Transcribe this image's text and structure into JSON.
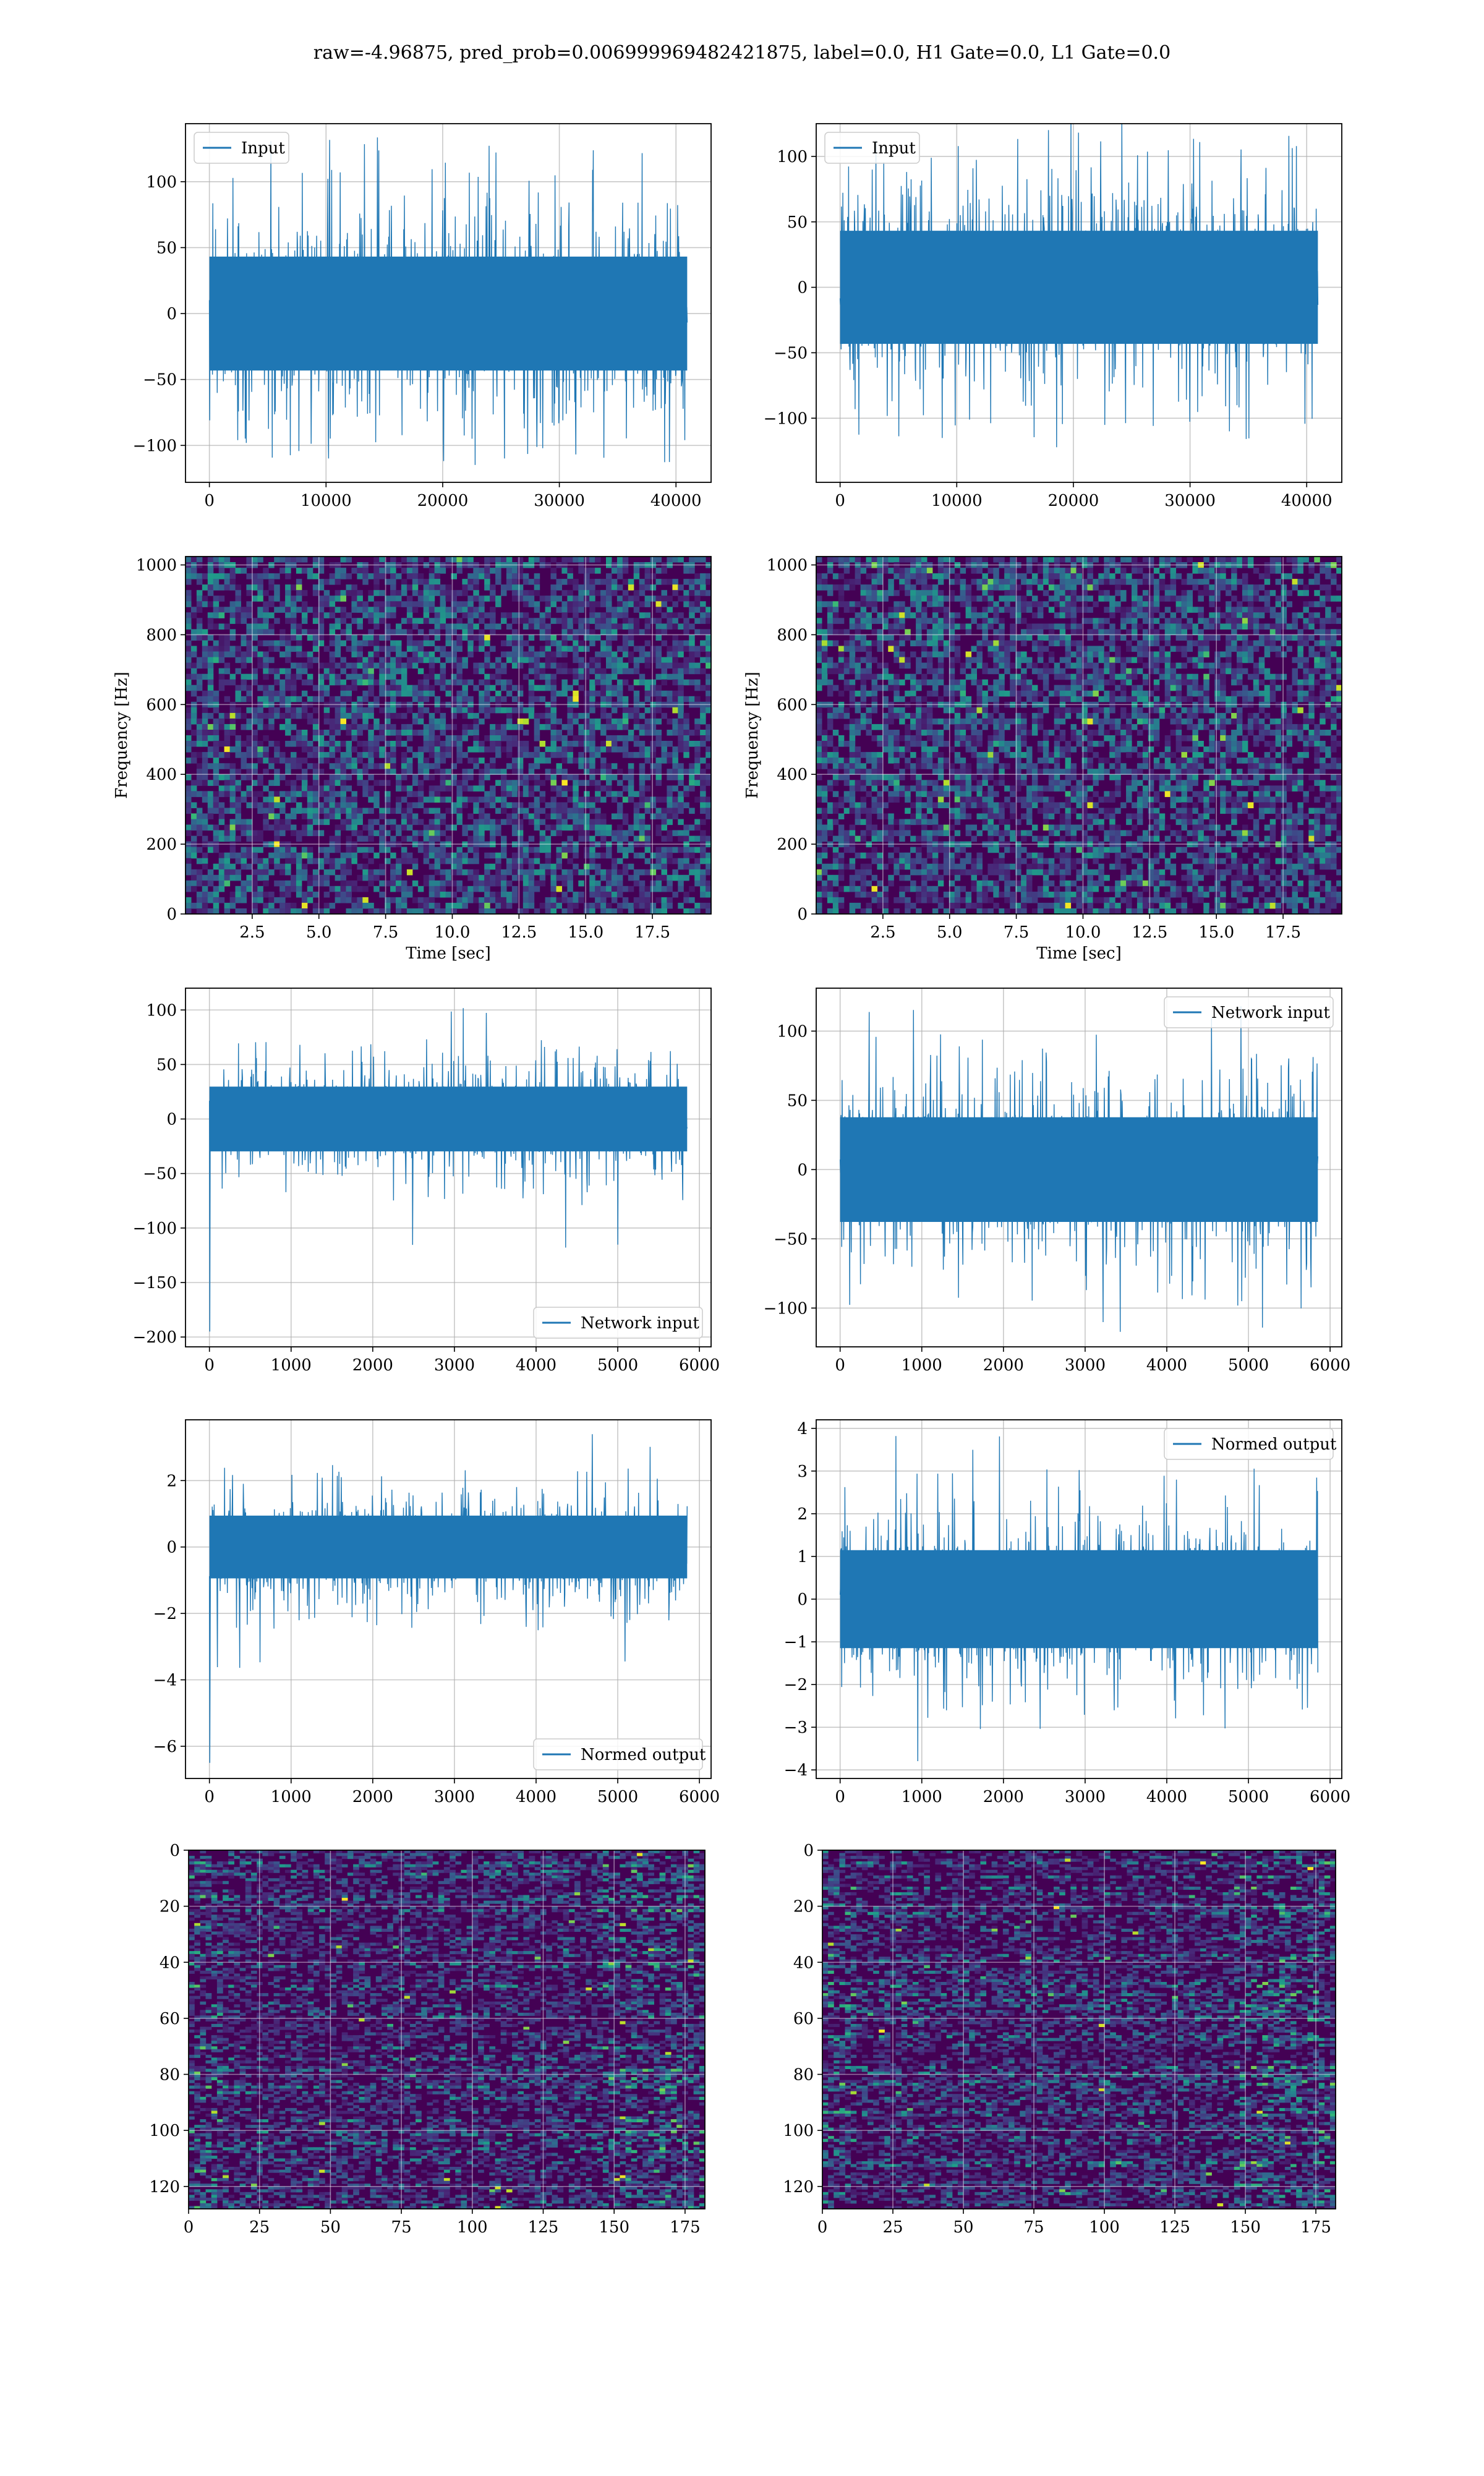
{
  "figure": {
    "suptitle": "raw=-4.96875, pred_prob=0.006999969482421875, label=0.0, H1 Gate=0.0, L1 Gate=0.0"
  },
  "colors": {
    "line": "#1f77b4",
    "grid": "#b0b0b0",
    "axes": "#000000",
    "viridis_low": "#440154",
    "viridis_mid": "#21918c",
    "viridis_high": "#fde725"
  },
  "chart_data": [
    {
      "id": "ts-input-left",
      "type": "line",
      "x_range": [
        0,
        40960
      ],
      "n_points": 1400,
      "y_amplitude": 32,
      "y_peak_max": 136,
      "y_peak_min": -112,
      "start_spike": 0,
      "xlim": [
        -2048,
        43008
      ],
      "ylim": [
        -128,
        144
      ],
      "xticks": [
        0,
        10000,
        20000,
        30000,
        40000
      ],
      "xtick_labels": [
        "0",
        "10000",
        "20000",
        "30000",
        "40000"
      ],
      "yticks": [
        -100,
        -50,
        0,
        50,
        100
      ],
      "ytick_labels": [
        "−100",
        "−50",
        "0",
        "50",
        "100"
      ],
      "legend": "Input",
      "legend_loc": "upper-left",
      "xlabel": "",
      "ylabel": "",
      "grid": true
    },
    {
      "id": "ts-input-right",
      "type": "line",
      "x_range": [
        0,
        40960
      ],
      "n_points": 1400,
      "y_amplitude": 32,
      "y_peak_max": 128,
      "y_peak_min": -128,
      "start_spike": 0,
      "xlim": [
        -2048,
        43008
      ],
      "ylim": [
        -149,
        125
      ],
      "xticks": [
        0,
        10000,
        20000,
        30000,
        40000
      ],
      "xtick_labels": [
        "0",
        "10000",
        "20000",
        "30000",
        "40000"
      ],
      "yticks": [
        -100,
        -50,
        0,
        50,
        100
      ],
      "ytick_labels": [
        "−100",
        "−50",
        "0",
        "50",
        "100"
      ],
      "legend": "Input",
      "legend_loc": "upper-left",
      "xlabel": "",
      "ylabel": "",
      "grid": true
    },
    {
      "id": "spec-left",
      "type": "heatmap",
      "variant": "spectrogram",
      "xlim": [
        0,
        19.7
      ],
      "ylim": [
        0,
        1024
      ],
      "xticks": [
        2.5,
        5.0,
        7.5,
        10.0,
        12.5,
        15.0,
        17.5
      ],
      "xtick_labels": [
        "2.5",
        "5.0",
        "7.5",
        "10.0",
        "12.5",
        "15.0",
        "17.5"
      ],
      "yticks": [
        0,
        200,
        400,
        600,
        800,
        1000
      ],
      "ytick_labels": [
        "0",
        "200",
        "400",
        "600",
        "800",
        "1000"
      ],
      "xlabel": "Time [sec]",
      "ylabel": "Frequency [Hz]",
      "grid": true,
      "colormap": "viridis"
    },
    {
      "id": "spec-right",
      "type": "heatmap",
      "variant": "spectrogram",
      "xlim": [
        0,
        19.7
      ],
      "ylim": [
        0,
        1024
      ],
      "xticks": [
        2.5,
        5.0,
        7.5,
        10.0,
        12.5,
        15.0,
        17.5
      ],
      "xtick_labels": [
        "2.5",
        "5.0",
        "7.5",
        "10.0",
        "12.5",
        "15.0",
        "17.5"
      ],
      "yticks": [
        0,
        200,
        400,
        600,
        800,
        1000
      ],
      "ytick_labels": [
        "0",
        "200",
        "400",
        "600",
        "800",
        "1000"
      ],
      "xlabel": "Time [sec]",
      "ylabel": "Frequency [Hz]",
      "grid": true,
      "colormap": "viridis"
    },
    {
      "id": "ts-network-left",
      "type": "line",
      "x_range": [
        0,
        5850
      ],
      "n_points": 1200,
      "y_amplitude": 22,
      "y_peak_max": 105,
      "y_peak_min": -118,
      "start_spike": -195,
      "xlim": [
        -293,
        6143
      ],
      "ylim": [
        -209,
        120
      ],
      "xticks": [
        0,
        1000,
        2000,
        3000,
        4000,
        5000,
        6000
      ],
      "xtick_labels": [
        "0",
        "1000",
        "2000",
        "3000",
        "4000",
        "5000",
        "6000"
      ],
      "yticks": [
        -200,
        -150,
        -100,
        -50,
        0,
        50,
        100
      ],
      "ytick_labels": [
        "−200",
        "−150",
        "−100",
        "−50",
        "0",
        "50",
        "100"
      ],
      "legend": "Network input",
      "legend_loc": "lower-right",
      "xlabel": "",
      "ylabel": "",
      "grid": true
    },
    {
      "id": "ts-network-right",
      "type": "line",
      "x_range": [
        0,
        5850
      ],
      "n_points": 1200,
      "y_amplitude": 28,
      "y_peak_max": 120,
      "y_peak_min": -118,
      "start_spike": 0,
      "xlim": [
        -293,
        6143
      ],
      "ylim": [
        -128,
        131
      ],
      "xticks": [
        0,
        1000,
        2000,
        3000,
        4000,
        5000,
        6000
      ],
      "xtick_labels": [
        "0",
        "1000",
        "2000",
        "3000",
        "4000",
        "5000",
        "6000"
      ],
      "yticks": [
        -100,
        -50,
        0,
        50,
        100
      ],
      "ytick_labels": [
        "−100",
        "−50",
        "0",
        "50",
        "100"
      ],
      "legend": "Network input",
      "legend_loc": "upper-right",
      "xlabel": "",
      "ylabel": "",
      "grid": true
    },
    {
      "id": "ts-normed-left",
      "type": "line",
      "x_range": [
        0,
        5850
      ],
      "n_points": 1200,
      "y_amplitude": 0.7,
      "y_peak_max": 3.4,
      "y_peak_min": -3.8,
      "start_spike": -6.5,
      "xlim": [
        -293,
        6143
      ],
      "ylim": [
        -6.97,
        3.83
      ],
      "xticks": [
        0,
        1000,
        2000,
        3000,
        4000,
        5000,
        6000
      ],
      "xtick_labels": [
        "0",
        "1000",
        "2000",
        "3000",
        "4000",
        "5000",
        "6000"
      ],
      "yticks": [
        -6,
        -4,
        -2,
        0,
        2
      ],
      "ytick_labels": [
        "−6",
        "−4",
        "−2",
        "0",
        "2"
      ],
      "legend": "Normed output",
      "legend_loc": "lower-right",
      "xlabel": "",
      "ylabel": "",
      "grid": true
    },
    {
      "id": "ts-normed-right",
      "type": "line",
      "x_range": [
        0,
        5850
      ],
      "n_points": 1200,
      "y_amplitude": 0.85,
      "y_peak_max": 3.9,
      "y_peak_min": -3.8,
      "start_spike": 0,
      "xlim": [
        -293,
        6143
      ],
      "ylim": [
        -4.2,
        4.2
      ],
      "xticks": [
        0,
        1000,
        2000,
        3000,
        4000,
        5000,
        6000
      ],
      "xtick_labels": [
        "0",
        "1000",
        "2000",
        "3000",
        "4000",
        "5000",
        "6000"
      ],
      "yticks": [
        -4,
        -3,
        -2,
        -1,
        0,
        1,
        2,
        3,
        4
      ],
      "ytick_labels": [
        "−4",
        "−3",
        "−2",
        "−1",
        "0",
        "1",
        "2",
        "3",
        "4"
      ],
      "legend": "Normed output",
      "legend_loc": "upper-right",
      "xlabel": "",
      "ylabel": "",
      "grid": true
    },
    {
      "id": "feat-left",
      "type": "heatmap",
      "variant": "feature-map",
      "xlim": [
        0,
        182
      ],
      "ylim": [
        128,
        0
      ],
      "xticks": [
        0,
        25,
        50,
        75,
        100,
        125,
        150,
        175
      ],
      "xtick_labels": [
        "0",
        "25",
        "50",
        "75",
        "100",
        "125",
        "150",
        "175"
      ],
      "yticks": [
        0,
        20,
        40,
        60,
        80,
        100,
        120
      ],
      "ytick_labels": [
        "0",
        "20",
        "40",
        "60",
        "80",
        "100",
        "120"
      ],
      "xlabel": "",
      "ylabel": "",
      "grid": true,
      "colormap": "viridis",
      "rows": 128,
      "cols": 182
    },
    {
      "id": "feat-right",
      "type": "heatmap",
      "variant": "feature-map",
      "xlim": [
        0,
        182
      ],
      "ylim": [
        128,
        0
      ],
      "xticks": [
        0,
        25,
        50,
        75,
        100,
        125,
        150,
        175
      ],
      "xtick_labels": [
        "0",
        "25",
        "50",
        "75",
        "100",
        "125",
        "150",
        "175"
      ],
      "yticks": [
        0,
        20,
        40,
        60,
        80,
        100,
        120
      ],
      "ytick_labels": [
        "0",
        "20",
        "40",
        "60",
        "80",
        "100",
        "120"
      ],
      "xlabel": "",
      "ylabel": "",
      "grid": true,
      "colormap": "viridis",
      "rows": 128,
      "cols": 182
    }
  ]
}
